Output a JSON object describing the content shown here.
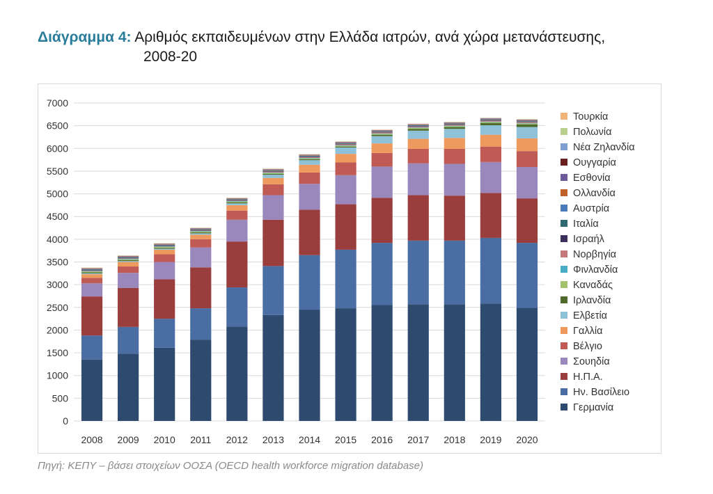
{
  "title": {
    "prefix": "Διάγραμμα 4:",
    "line1": "Αριθμός εκπαιδευμένων στην Ελλάδα ιατρών, ανά χώρα μετανάστευσης,",
    "line2": "2008-20"
  },
  "source": "Πηγή: ΚΕΠΥ – βάσει στοιχείων ΟΟΣΑ (OECD health workforce migration database)",
  "chart_data": {
    "type": "bar",
    "stacked": true,
    "categories": [
      "2008",
      "2009",
      "2010",
      "2011",
      "2012",
      "2013",
      "2014",
      "2015",
      "2016",
      "2017",
      "2018",
      "2019",
      "2020"
    ],
    "ylim": [
      0,
      7000
    ],
    "yticks": [
      0,
      500,
      1000,
      1500,
      2000,
      2500,
      3000,
      3500,
      4000,
      4500,
      5000,
      5500,
      6000,
      6500,
      7000
    ],
    "grid": true,
    "legend_position": "right",
    "series": [
      {
        "name": "Γερμανία",
        "color": "#2e4a6e",
        "values": [
          1350,
          1480,
          1610,
          1790,
          2080,
          2330,
          2450,
          2480,
          2550,
          2570,
          2570,
          2580,
          2490
        ]
      },
      {
        "name": "Ην. Βασίλειο",
        "color": "#4a6ea3",
        "values": [
          530,
          590,
          640,
          690,
          860,
          1080,
          1200,
          1290,
          1370,
          1400,
          1400,
          1450,
          1430
        ]
      },
      {
        "name": "Η.Π.Α.",
        "color": "#9a3d3d",
        "values": [
          860,
          860,
          870,
          900,
          1010,
          1020,
          1000,
          1000,
          990,
          1000,
          990,
          990,
          980
        ]
      },
      {
        "name": "Σουηδία",
        "color": "#9a88bd",
        "values": [
          290,
          330,
          380,
          440,
          480,
          540,
          570,
          640,
          690,
          700,
          700,
          680,
          690
        ]
      },
      {
        "name": "Βέλγιο",
        "color": "#c05a55",
        "values": [
          120,
          140,
          170,
          180,
          200,
          240,
          250,
          280,
          300,
          320,
          330,
          340,
          350
        ]
      },
      {
        "name": "Γαλλία",
        "color": "#ee9a5f",
        "values": [
          80,
          100,
          100,
          100,
          120,
          140,
          170,
          190,
          210,
          220,
          240,
          260,
          280
        ]
      },
      {
        "name": "Ελβετία",
        "color": "#8fc1d9",
        "values": [
          20,
          20,
          20,
          30,
          40,
          70,
          100,
          140,
          160,
          180,
          200,
          210,
          250
        ]
      },
      {
        "name": "Ιρλανδία",
        "color": "#4f6a2c",
        "values": [
          20,
          20,
          20,
          20,
          20,
          20,
          20,
          20,
          30,
          40,
          40,
          50,
          60
        ]
      },
      {
        "name": "Καναδάς",
        "color": "#a3c26e",
        "values": [
          20,
          20,
          20,
          20,
          20,
          20,
          20,
          20,
          20,
          20,
          20,
          20,
          20
        ]
      },
      {
        "name": "Φινλανδία",
        "color": "#4bacc6",
        "values": [
          10,
          10,
          10,
          10,
          10,
          10,
          10,
          10,
          10,
          10,
          10,
          10,
          10
        ]
      },
      {
        "name": "Νορβηγία",
        "color": "#c6797a",
        "values": [
          10,
          10,
          10,
          10,
          10,
          20,
          20,
          20,
          20,
          20,
          20,
          20,
          20
        ]
      },
      {
        "name": "Ισραήλ",
        "color": "#3d2f5c",
        "values": [
          10,
          10,
          10,
          10,
          10,
          10,
          10,
          10,
          10,
          10,
          10,
          10,
          10
        ]
      },
      {
        "name": "Ιταλία",
        "color": "#2f6a73",
        "values": [
          10,
          10,
          10,
          10,
          10,
          10,
          10,
          10,
          10,
          10,
          10,
          10,
          10
        ]
      },
      {
        "name": "Αυστρία",
        "color": "#4a7ab8",
        "values": [
          10,
          10,
          10,
          10,
          10,
          10,
          10,
          10,
          10,
          10,
          10,
          10,
          10
        ]
      },
      {
        "name": "Ολλανδία",
        "color": "#c0602a",
        "values": [
          10,
          10,
          10,
          10,
          10,
          10,
          10,
          10,
          10,
          10,
          10,
          10,
          10
        ]
      },
      {
        "name": "Εσθονία",
        "color": "#6d5a9a",
        "values": [
          5,
          5,
          5,
          5,
          5,
          5,
          5,
          5,
          5,
          5,
          5,
          5,
          5
        ]
      },
      {
        "name": "Ουγγαρία",
        "color": "#6b2020",
        "values": [
          5,
          5,
          5,
          5,
          5,
          5,
          5,
          5,
          5,
          5,
          5,
          5,
          5
        ]
      },
      {
        "name": "Νέα Ζηλανδία",
        "color": "#7f9fd0",
        "values": [
          5,
          5,
          5,
          5,
          5,
          5,
          5,
          5,
          5,
          5,
          5,
          5,
          5
        ]
      },
      {
        "name": "Πολωνία",
        "color": "#b8cf8e",
        "values": [
          5,
          5,
          5,
          5,
          5,
          5,
          5,
          5,
          5,
          5,
          5,
          5,
          5
        ]
      },
      {
        "name": "Τουρκία",
        "color": "#f0b47a",
        "values": [
          5,
          5,
          5,
          5,
          5,
          5,
          5,
          5,
          5,
          5,
          5,
          5,
          5
        ]
      }
    ]
  }
}
